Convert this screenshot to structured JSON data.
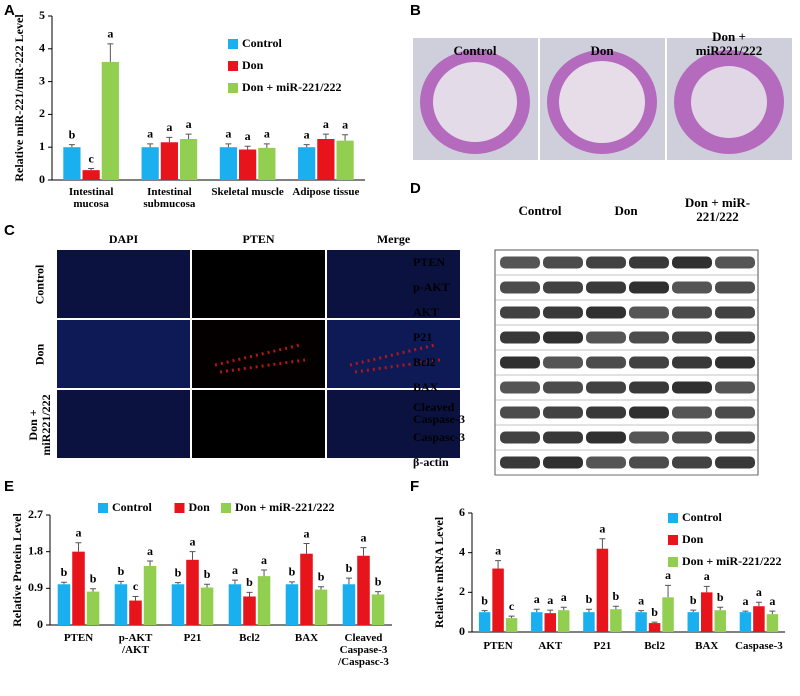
{
  "panel_letters": [
    "A",
    "B",
    "C",
    "D",
    "E",
    "F"
  ],
  "chart_data": [
    {
      "type": "bar",
      "ylabel": "Relative miR-221/miR-222 Level",
      "categories": [
        "Intestinal mucosa",
        "Intestinal submucosa",
        "Skeletal muscle",
        "Adipose tissue"
      ],
      "ylim": [
        0,
        5
      ],
      "yticks": [
        0,
        1,
        2,
        3,
        4,
        5
      ],
      "legend": "upper right",
      "series": [
        {
          "name": "Control",
          "color": "#1ab0ef",
          "values": [
            1.0,
            1.0,
            1.0,
            1.0
          ],
          "errors": [
            0.08,
            0.1,
            0.1,
            0.08
          ],
          "labels": [
            "b",
            "a",
            "a",
            "a"
          ]
        },
        {
          "name": "Don",
          "color": "#e8141c",
          "values": [
            0.3,
            1.15,
            0.93,
            1.25
          ],
          "errors": [
            0.05,
            0.15,
            0.1,
            0.15
          ],
          "labels": [
            "c",
            "a",
            "a",
            "a"
          ]
        },
        {
          "name": "Don + miR-221/222",
          "color": "#92cf50",
          "values": [
            3.6,
            1.25,
            0.98,
            1.2
          ],
          "errors": [
            0.55,
            0.15,
            0.12,
            0.18
          ],
          "labels": [
            "a",
            "a",
            "a",
            "a"
          ]
        }
      ]
    },
    {
      "type": "bar",
      "ylabel": "Relative Protein Level",
      "categories": [
        "PTEN",
        "p-AKT /AKT",
        "P21",
        "Bcl2",
        "BAX",
        "Cleaved Caspase-3 /Caspasc-3"
      ],
      "ylim": [
        0,
        2.7
      ],
      "yticks": [
        0,
        0.9,
        1.8,
        2.7
      ],
      "legend": "top",
      "series": [
        {
          "name": "Control",
          "color": "#1ab0ef",
          "values": [
            1.0,
            1.0,
            1.0,
            1.0,
            1.0,
            1.0
          ],
          "errors": [
            0.05,
            0.07,
            0.04,
            0.1,
            0.06,
            0.15
          ],
          "labels": [
            "b",
            "b",
            "b",
            "a",
            "b",
            "b"
          ]
        },
        {
          "name": "Don",
          "color": "#e8141c",
          "values": [
            1.8,
            0.6,
            1.6,
            0.7,
            1.75,
            1.7
          ],
          "errors": [
            0.22,
            0.1,
            0.2,
            0.1,
            0.25,
            0.2
          ],
          "labels": [
            "a",
            "c",
            "a",
            "b",
            "a",
            "a"
          ]
        },
        {
          "name": "Don + miR-221/222",
          "color": "#92cf50",
          "values": [
            0.82,
            1.45,
            0.92,
            1.2,
            0.87,
            0.75
          ],
          "errors": [
            0.07,
            0.12,
            0.08,
            0.15,
            0.07,
            0.07
          ],
          "labels": [
            "b",
            "a",
            "b",
            "a",
            "b",
            "b"
          ]
        }
      ]
    },
    {
      "type": "bar",
      "ylabel": "Relative mRNA Level",
      "categories": [
        "PTEN",
        "AKT",
        "P21",
        "Bcl2",
        "BAX",
        "Caspase-3"
      ],
      "ylim": [
        0,
        6
      ],
      "yticks": [
        0,
        2,
        4,
        6
      ],
      "legend": "upper right",
      "series": [
        {
          "name": "Control",
          "color": "#1ab0ef",
          "values": [
            1.0,
            1.0,
            1.0,
            1.0,
            1.0,
            1.0
          ],
          "errors": [
            0.08,
            0.15,
            0.15,
            0.08,
            0.1,
            0.05
          ],
          "labels": [
            "b",
            "a",
            "b",
            "a",
            "b",
            "a"
          ]
        },
        {
          "name": "Don",
          "color": "#e8141c",
          "values": [
            3.2,
            0.95,
            4.2,
            0.45,
            2.0,
            1.3
          ],
          "errors": [
            0.4,
            0.15,
            0.5,
            0.05,
            0.3,
            0.2
          ],
          "labels": [
            "a",
            "a",
            "a",
            "b",
            "a",
            "a"
          ]
        },
        {
          "name": "Don + miR-221/222",
          "color": "#92cf50",
          "values": [
            0.7,
            1.1,
            1.15,
            1.75,
            1.1,
            0.9
          ],
          "errors": [
            0.1,
            0.15,
            0.15,
            0.6,
            0.15,
            0.15
          ],
          "labels": [
            "c",
            "a",
            "b",
            "a",
            "b",
            "a"
          ]
        }
      ]
    }
  ],
  "histology": {
    "labels": [
      "Control",
      "Don",
      "Don + miR221/222"
    ]
  },
  "immunofluorescence": {
    "columns": [
      "DAPI",
      "PTEN",
      "Merge"
    ],
    "rows": [
      "Control",
      "Don",
      "Don + miR221/222"
    ]
  },
  "western_blot": {
    "groups": [
      "Control",
      "Don",
      "Don + miR-221/222"
    ],
    "rows": [
      "PTEN",
      "p-AKT",
      "AKT",
      "P21",
      "Bcl2",
      "BAX",
      "Cleaved Caspase-3",
      "Caspasc-3",
      "β-actin"
    ]
  }
}
